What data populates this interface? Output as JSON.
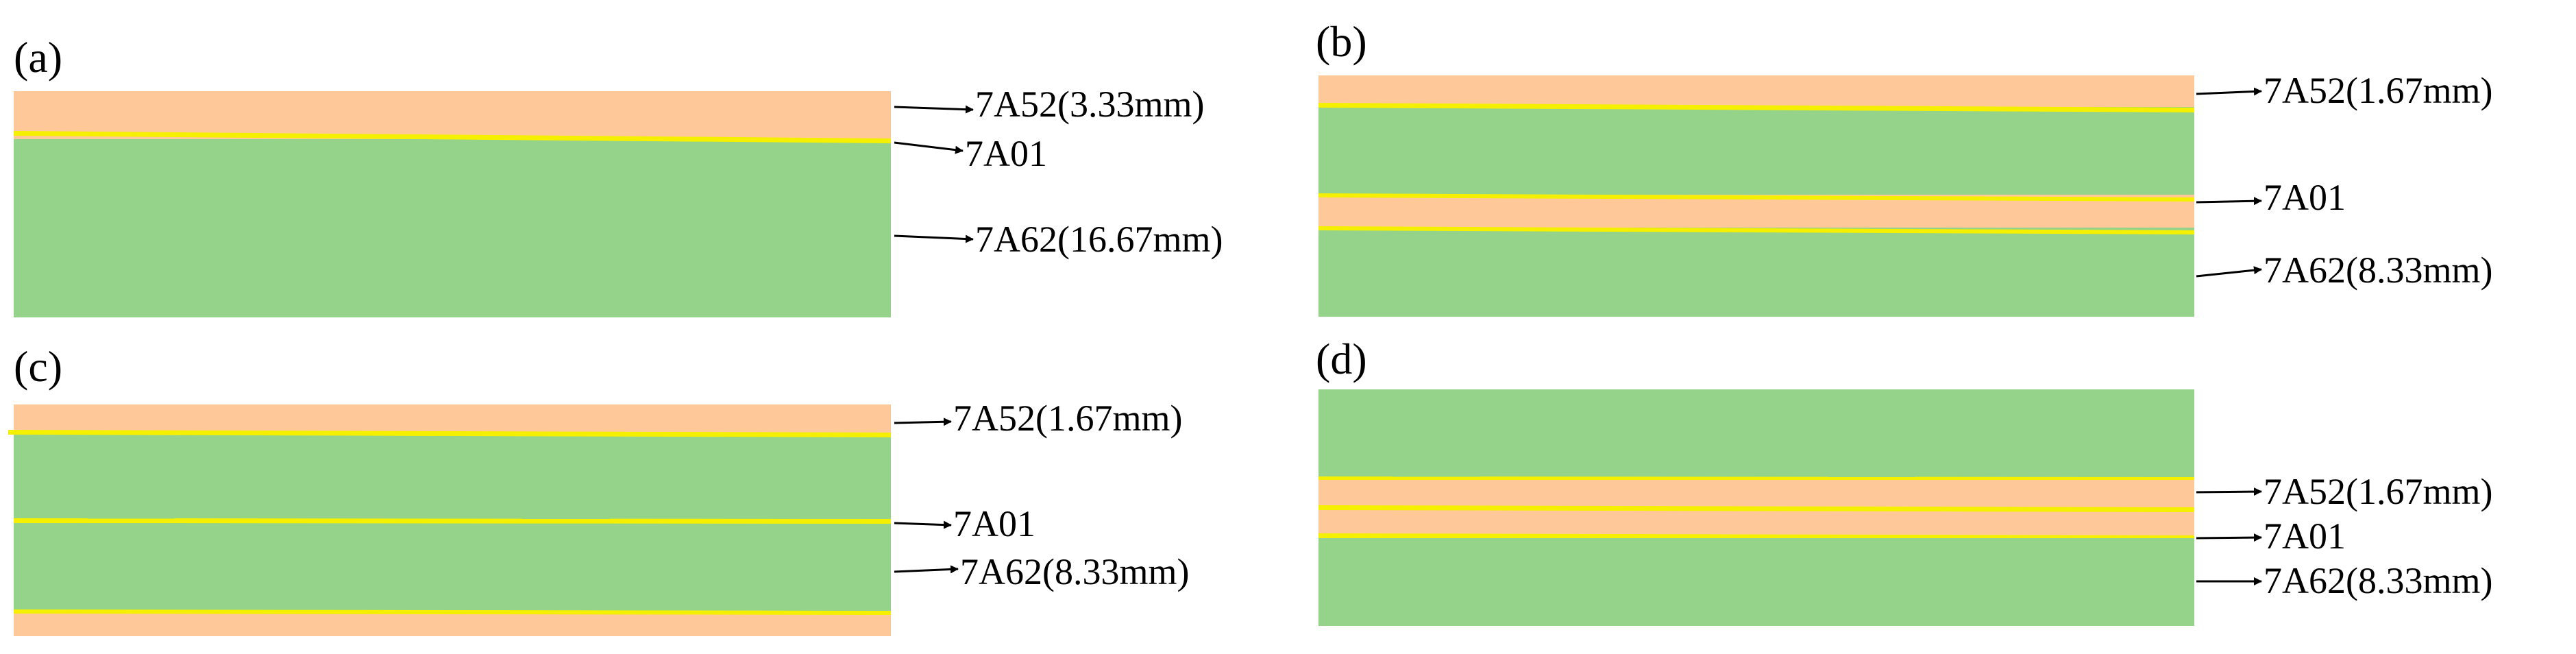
{
  "panels": {
    "a": {
      "label": "(a)",
      "ann_top": "7A52(3.33mm)",
      "ann_mid": "7A01",
      "ann_bot": "7A62(16.67mm)"
    },
    "b": {
      "label": "(b)",
      "ann_top": "7A52(1.67mm)",
      "ann_mid": "7A01",
      "ann_bot": "7A62(8.33mm)"
    },
    "c": {
      "label": "(c)",
      "ann_top": "7A52(1.67mm)",
      "ann_mid": "7A01",
      "ann_bot": "7A62(8.33mm)"
    },
    "d": {
      "label": "(d)",
      "ann_top": "7A52(1.67mm)",
      "ann_mid": "7A01",
      "ann_bot": "7A62(8.33mm)"
    }
  },
  "colors": {
    "7A52": "#ffc898",
    "7A62": "#95d38b",
    "7A01": "#f4f000",
    "arrow": "#000000"
  }
}
